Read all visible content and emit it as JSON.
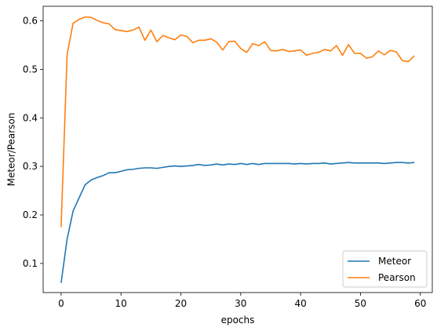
{
  "chart_data": {
    "type": "line",
    "title": "",
    "xlabel": "epochs",
    "ylabel": "Meteor/Pearson",
    "xlim": [
      -3,
      62
    ],
    "ylim": [
      0.04,
      0.63
    ],
    "xticks": [
      0,
      10,
      20,
      30,
      40,
      50,
      60
    ],
    "yticks": [
      0.1,
      0.2,
      0.3,
      0.4,
      0.5,
      0.6
    ],
    "grid": false,
    "legend": "lower-right",
    "x": [
      0,
      1,
      2,
      3,
      4,
      5,
      6,
      7,
      8,
      9,
      10,
      11,
      12,
      13,
      14,
      15,
      16,
      17,
      18,
      19,
      20,
      21,
      22,
      23,
      24,
      25,
      26,
      27,
      28,
      29,
      30,
      31,
      32,
      33,
      34,
      35,
      36,
      37,
      38,
      39,
      40,
      41,
      42,
      43,
      44,
      45,
      46,
      47,
      48,
      49,
      50,
      51,
      52,
      53,
      54,
      55,
      56,
      57,
      58,
      59
    ],
    "series": [
      {
        "name": "Meteor",
        "color": "#1f77b4",
        "values": [
          0.06,
          0.15,
          0.208,
          0.235,
          0.262,
          0.272,
          0.277,
          0.281,
          0.287,
          0.287,
          0.29,
          0.293,
          0.294,
          0.296,
          0.297,
          0.297,
          0.296,
          0.298,
          0.3,
          0.301,
          0.3,
          0.301,
          0.302,
          0.304,
          0.302,
          0.303,
          0.305,
          0.303,
          0.305,
          0.304,
          0.306,
          0.304,
          0.306,
          0.304,
          0.306,
          0.306,
          0.306,
          0.306,
          0.306,
          0.305,
          0.306,
          0.305,
          0.306,
          0.306,
          0.307,
          0.305,
          0.306,
          0.307,
          0.308,
          0.307,
          0.307,
          0.307,
          0.307,
          0.307,
          0.306,
          0.307,
          0.308,
          0.308,
          0.307,
          0.308
        ]
      },
      {
        "name": "Pearson",
        "color": "#ff7f0e",
        "values": [
          0.175,
          0.53,
          0.595,
          0.603,
          0.608,
          0.607,
          0.601,
          0.596,
          0.594,
          0.582,
          0.58,
          0.578,
          0.581,
          0.587,
          0.56,
          0.581,
          0.557,
          0.57,
          0.565,
          0.561,
          0.571,
          0.568,
          0.555,
          0.56,
          0.56,
          0.563,
          0.556,
          0.54,
          0.557,
          0.558,
          0.543,
          0.535,
          0.553,
          0.549,
          0.557,
          0.539,
          0.538,
          0.541,
          0.537,
          0.538,
          0.54,
          0.529,
          0.533,
          0.535,
          0.541,
          0.538,
          0.549,
          0.529,
          0.551,
          0.533,
          0.533,
          0.523,
          0.526,
          0.538,
          0.53,
          0.539,
          0.536,
          0.518,
          0.516,
          0.528
        ]
      }
    ]
  }
}
